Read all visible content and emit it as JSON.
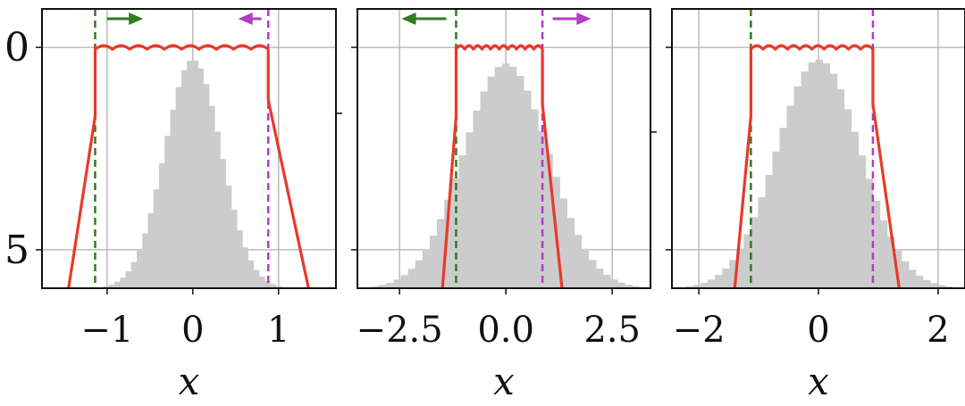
{
  "chart_data": [
    {
      "type": "histogram+line",
      "xlabel": "x",
      "xlim": [
        -1.76,
        1.67
      ],
      "ylim": [
        -0.95,
        5.95
      ],
      "xticks": [
        -1,
        0,
        1
      ],
      "xtick_labels": [
        "−1",
        "0",
        "1"
      ],
      "yticks": [
        0,
        5
      ],
      "ytick_labels": [
        "0",
        "5"
      ],
      "grid": true,
      "histogram": {
        "mean": 0,
        "std": 0.33,
        "bin_width": 0.065,
        "peak": 0.3,
        "floor": 5.95
      },
      "lower_bound": -1.14,
      "upper_bound": 0.88,
      "red_curve": {
        "top": 0,
        "left_step": 1.7,
        "right_step": 1.3,
        "left_end_x": -1.45,
        "right_end_x": 1.35
      },
      "arrows": [
        {
          "color": "#2e7d1f",
          "direction": "right",
          "from": -1.0,
          "to": -0.58
        },
        {
          "color": "#b23cc8",
          "direction": "left",
          "from": 0.8,
          "to": 0.53
        }
      ]
    },
    {
      "type": "histogram+line",
      "xlabel": "x",
      "xlim": [
        -3.49,
        3.4
      ],
      "ylim": [
        -0.95,
        5.95
      ],
      "xticks": [
        -2.5,
        0,
        2.5
      ],
      "xtick_labels": [
        "−2.5",
        "0.0",
        "2.5"
      ],
      "yticks": [
        0,
        5
      ],
      "ytick_labels": [
        "",
        ""
      ],
      "grid": true,
      "histogram": {
        "mean": 0,
        "std": 1.0,
        "bin_width": 0.17,
        "peak": 0.4,
        "floor": 5.95
      },
      "lower_bound": -1.17,
      "upper_bound": 0.86,
      "red_curve": {
        "top": 0,
        "left_step": 1.7,
        "right_step": 1.4,
        "left_end_x": -1.49,
        "right_end_x": 1.32
      },
      "arrows": [
        {
          "color": "#2e7d1f",
          "direction": "left",
          "from": -1.4,
          "to": -2.45
        },
        {
          "color": "#b23cc8",
          "direction": "right",
          "from": 1.1,
          "to": 2.0
        }
      ]
    },
    {
      "type": "histogram+line",
      "xlabel": "x",
      "xlim": [
        -2.45,
        2.45
      ],
      "ylim": [
        -0.95,
        5.95
      ],
      "xticks": [
        -2,
        0,
        2
      ],
      "xtick_labels": [
        "−2",
        "0",
        "2"
      ],
      "yticks": [
        0,
        5
      ],
      "ytick_labels": [
        "",
        ""
      ],
      "grid": true,
      "histogram": {
        "mean": 0,
        "std": 0.7,
        "bin_width": 0.12,
        "peak": 0.3,
        "floor": 5.95
      },
      "lower_bound": -1.13,
      "upper_bound": 0.91,
      "red_curve": {
        "top": 0,
        "left_step": 1.7,
        "right_step": 1.4,
        "left_end_x": -1.4,
        "right_end_x": 1.35
      },
      "arrows": []
    }
  ]
}
